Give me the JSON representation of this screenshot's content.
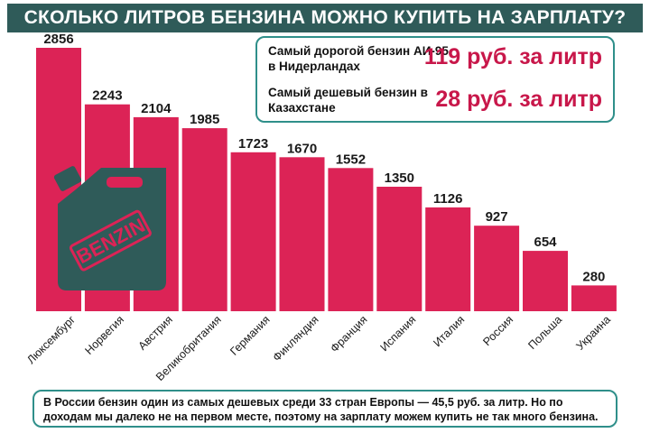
{
  "title": "СКОЛЬКО ЛИТРОВ БЕНЗИНА МОЖНО КУПИТЬ НА ЗАРПЛАТУ?",
  "info": {
    "line1_text": "Самый дорогой бензин АИ-95 в Нидерландах",
    "line1_price": "119 руб. за литр",
    "line2_text": "Самый дешевый бензин в Казахстане",
    "line2_price": "28 руб. за литр"
  },
  "footer": "В России бензин один из самых дешевых среди 33 стран Европы — 45,5 руб. за литр. Но по доходам мы далеко не на первом месте, поэтому на зарплату можем купить не так много бензина.",
  "canister_label": "BENZIN",
  "colors": {
    "bar": "#dc2356",
    "title_bg": "#2f5b59",
    "canister": "#2f5b59",
    "accent": "#c8174a",
    "border": "#2f8f8a"
  },
  "chart_data": {
    "type": "bar",
    "title": "СКОЛЬКО ЛИТРОВ БЕНЗИНА МОЖНО КУПИТЬ НА ЗАРПЛАТУ?",
    "categories": [
      "Люксембург",
      "Норвегия",
      "Австрия",
      "Великобритания",
      "Германия",
      "Финляндия",
      "Франция",
      "Испания",
      "Италия",
      "Россия",
      "Польша",
      "Украина"
    ],
    "values": [
      2856,
      2243,
      2104,
      1985,
      1723,
      1670,
      1552,
      1350,
      1126,
      927,
      654,
      280
    ],
    "xlabel": "",
    "ylabel": "",
    "ylim": [
      0,
      2856
    ],
    "grid": false,
    "legend": "none"
  }
}
